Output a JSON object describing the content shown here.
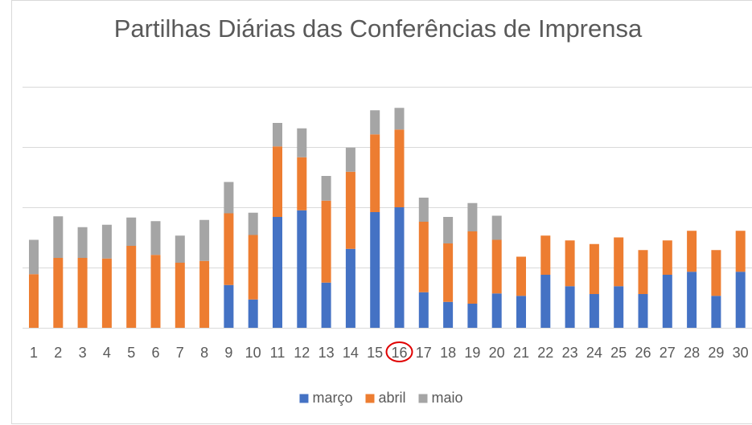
{
  "chart_data": {
    "type": "stacked_bar",
    "title": "Partilhas Diárias das Conferências de Imprensa",
    "categories": [
      "1",
      "2",
      "3",
      "4",
      "5",
      "6",
      "7",
      "8",
      "9",
      "10",
      "11",
      "12",
      "13",
      "14",
      "15",
      "16",
      "17",
      "18",
      "19",
      "20",
      "21",
      "22",
      "23",
      "24",
      "25",
      "26",
      "27",
      "28",
      "29",
      "30"
    ],
    "series": [
      {
        "name": "março",
        "color": "#4472c4",
        "values": [
          0,
          0,
          0,
          0,
          0,
          0,
          0,
          0,
          71,
          47,
          184,
          195,
          75,
          131,
          192,
          200,
          59,
          43,
          40,
          57,
          53,
          88,
          69,
          56,
          69,
          56,
          88,
          93,
          53,
          93
        ]
      },
      {
        "name": "abril",
        "color": "#ed7d31",
        "values": [
          89,
          116,
          116,
          115,
          136,
          121,
          108,
          111,
          119,
          107,
          117,
          88,
          136,
          128,
          129,
          129,
          117,
          97,
          120,
          89,
          65,
          65,
          76,
          83,
          81,
          73,
          57,
          68,
          76,
          68
        ]
      },
      {
        "name": "maio",
        "color": "#a5a5a5",
        "values": [
          57,
          69,
          51,
          56,
          47,
          56,
          45,
          68,
          52,
          37,
          39,
          48,
          41,
          40,
          40,
          36,
          40,
          44,
          47,
          40,
          0,
          0,
          0,
          0,
          0,
          0,
          0,
          0,
          0,
          0
        ]
      }
    ],
    "ylim": [
      0,
      400
    ],
    "yticks": [
      0,
      100,
      200,
      300,
      400
    ],
    "grid": true,
    "legend": "bottom"
  }
}
